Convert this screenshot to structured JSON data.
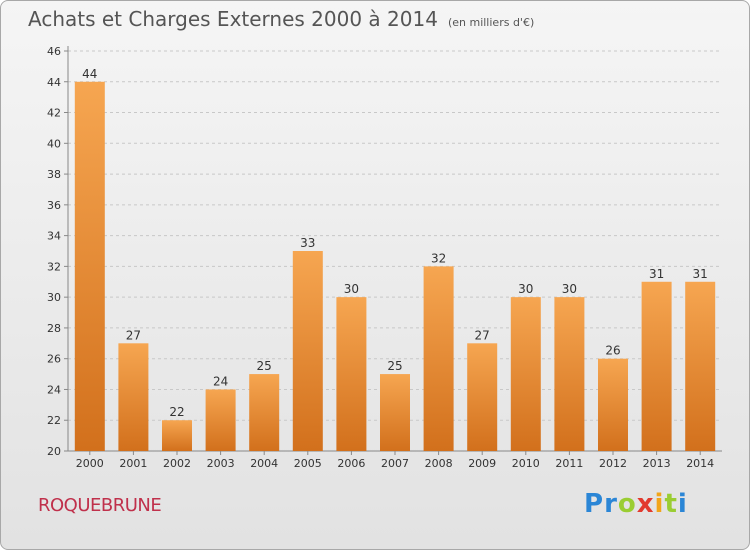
{
  "header": {
    "title": "Achats et Charges Externes 2000 à 2014",
    "subtitle": "(en milliers d'€)"
  },
  "footer": {
    "commune": "ROQUEBRUNE",
    "brand_letters": [
      {
        "ch": "P",
        "color": "#2b86d6"
      },
      {
        "ch": "r",
        "color": "#2b86d6"
      },
      {
        "ch": "o",
        "color": "#9acd32"
      },
      {
        "ch": "x",
        "color": "#e23a2e"
      },
      {
        "ch": "i",
        "color": "#f2a51a"
      },
      {
        "ch": "t",
        "color": "#9acd32"
      },
      {
        "ch": "i",
        "color": "#2b86d6"
      }
    ]
  },
  "chart_data": {
    "type": "bar",
    "title": "Achats et Charges Externes 2000 à 2014",
    "subtitle": "(en milliers d'€)",
    "categories": [
      "2000",
      "2001",
      "2002",
      "2003",
      "2004",
      "2005",
      "2006",
      "2007",
      "2008",
      "2009",
      "2010",
      "2011",
      "2012",
      "2013",
      "2014"
    ],
    "values": [
      44,
      27,
      22,
      24,
      25,
      33,
      30,
      25,
      32,
      27,
      30,
      30,
      26,
      31,
      31
    ],
    "ylim": [
      20,
      46
    ],
    "yticks": [
      20,
      22,
      24,
      26,
      28,
      30,
      32,
      34,
      36,
      38,
      40,
      42,
      44,
      46
    ],
    "grid": true,
    "bar_color_top": "#f6a651",
    "bar_color_bottom": "#d2701c"
  }
}
